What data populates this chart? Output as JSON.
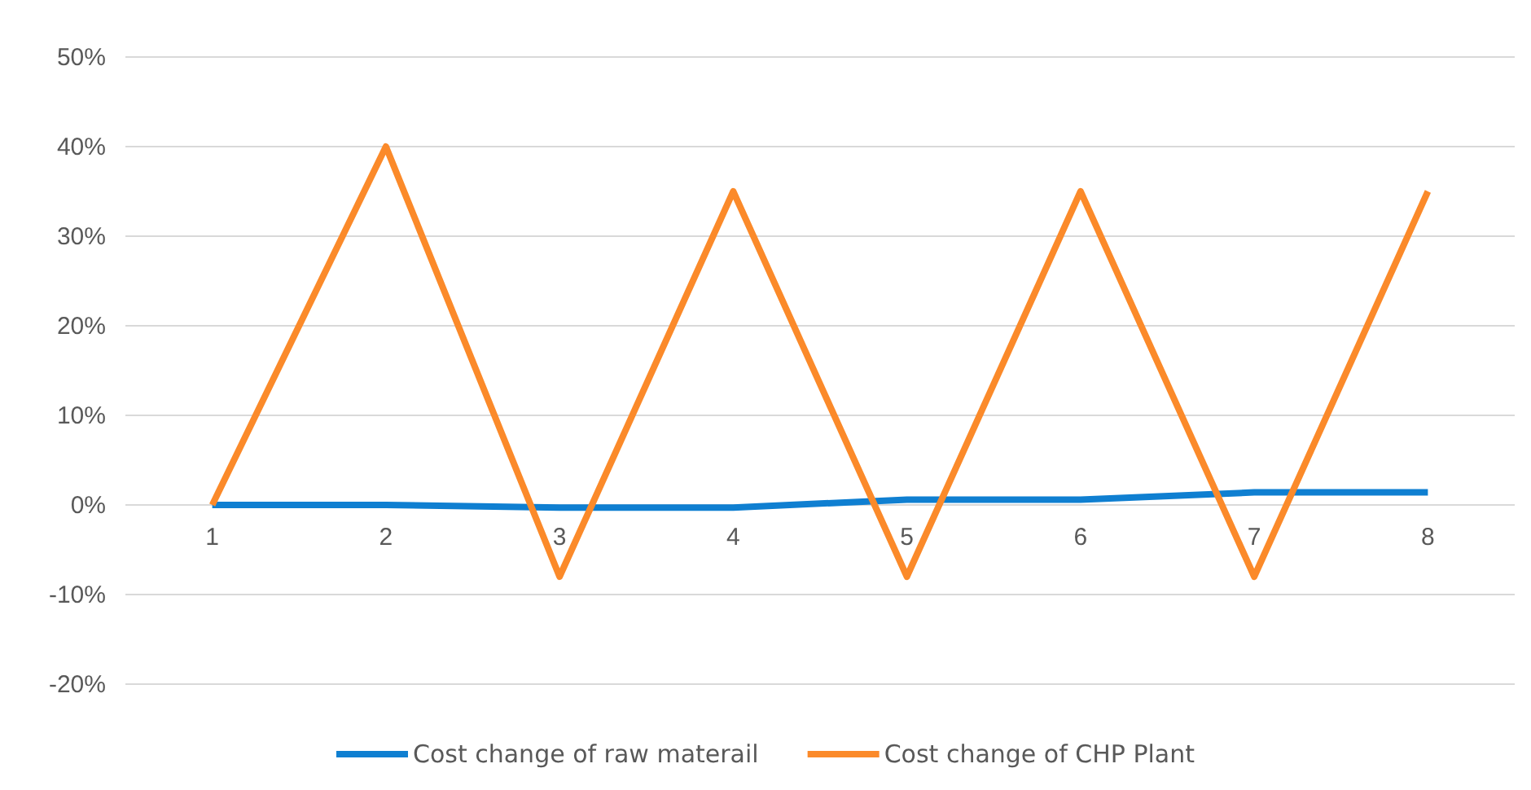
{
  "chart_data": {
    "type": "line",
    "categories": [
      "1",
      "2",
      "3",
      "4",
      "5",
      "6",
      "7",
      "8"
    ],
    "series": [
      {
        "name": "Cost change of raw materail",
        "color": "#0f7fd1",
        "values": [
          0,
          0,
          -0.3,
          -0.3,
          0.6,
          0.6,
          1.4,
          1.4
        ]
      },
      {
        "name": "Cost change of CHP Plant",
        "color": "#fb8a2a",
        "values": [
          0,
          40,
          -8,
          35,
          -8,
          35,
          -8,
          35
        ]
      }
    ],
    "ylim": [
      -20,
      50
    ],
    "yticks": [
      {
        "value": -20,
        "label": "-20%"
      },
      {
        "value": -10,
        "label": "-10%"
      },
      {
        "value": 0,
        "label": "0%"
      },
      {
        "value": 10,
        "label": "10%"
      },
      {
        "value": 20,
        "label": "20%"
      },
      {
        "value": 30,
        "label": "30%"
      },
      {
        "value": 40,
        "label": "40%"
      },
      {
        "value": 50,
        "label": "50%"
      }
    ],
    "grid": "y",
    "legend": "bottom",
    "marker": "none",
    "line_style": "solid"
  }
}
